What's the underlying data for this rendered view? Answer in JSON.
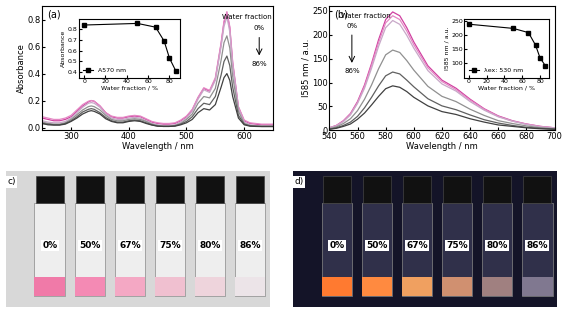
{
  "chart_data": [
    {
      "type": "line",
      "title": "(a)",
      "x_label": "Wavelength / nm",
      "y_label": "Absorbance",
      "x": [
        250,
        260,
        270,
        280,
        290,
        300,
        310,
        320,
        330,
        335,
        340,
        350,
        360,
        370,
        380,
        390,
        400,
        410,
        420,
        430,
        440,
        450,
        460,
        470,
        480,
        490,
        500,
        510,
        520,
        530,
        540,
        550,
        560,
        565,
        570,
        575,
        580,
        590,
        600,
        610,
        620,
        630,
        640,
        650
      ],
      "xlim": [
        250,
        650
      ],
      "xticks": [
        300,
        400,
        500,
        600
      ],
      "ylim": [
        -0.02,
        0.9
      ],
      "yticks": [
        0.0,
        0.2,
        0.4,
        0.6,
        0.8
      ],
      "series": [
        {
          "name": "0%",
          "color": "#d040a0",
          "values": [
            0.07,
            0.06,
            0.05,
            0.05,
            0.06,
            0.08,
            0.12,
            0.16,
            0.19,
            0.2,
            0.195,
            0.16,
            0.11,
            0.08,
            0.07,
            0.07,
            0.08,
            0.085,
            0.08,
            0.06,
            0.04,
            0.03,
            0.025,
            0.025,
            0.03,
            0.05,
            0.08,
            0.13,
            0.22,
            0.29,
            0.27,
            0.36,
            0.62,
            0.78,
            0.85,
            0.74,
            0.48,
            0.15,
            0.05,
            0.03,
            0.025,
            0.02,
            0.02,
            0.02
          ]
        },
        {
          "name": "50%",
          "color": "#e488c4",
          "values": [
            0.08,
            0.07,
            0.06,
            0.06,
            0.07,
            0.09,
            0.13,
            0.17,
            0.195,
            0.2,
            0.195,
            0.16,
            0.11,
            0.085,
            0.075,
            0.075,
            0.085,
            0.09,
            0.085,
            0.065,
            0.045,
            0.035,
            0.03,
            0.03,
            0.035,
            0.055,
            0.085,
            0.135,
            0.225,
            0.295,
            0.275,
            0.37,
            0.63,
            0.79,
            0.86,
            0.75,
            0.49,
            0.155,
            0.055,
            0.035,
            0.03,
            0.025,
            0.025,
            0.025
          ]
        },
        {
          "name": "67%",
          "color": "#c8a8c8",
          "values": [
            0.05,
            0.04,
            0.035,
            0.035,
            0.045,
            0.07,
            0.11,
            0.15,
            0.18,
            0.185,
            0.18,
            0.15,
            0.1,
            0.07,
            0.06,
            0.06,
            0.07,
            0.075,
            0.07,
            0.05,
            0.03,
            0.02,
            0.015,
            0.015,
            0.02,
            0.04,
            0.07,
            0.12,
            0.21,
            0.28,
            0.26,
            0.35,
            0.6,
            0.75,
            0.82,
            0.71,
            0.46,
            0.14,
            0.04,
            0.02,
            0.015,
            0.01,
            0.01,
            0.01
          ]
        },
        {
          "name": "75%",
          "color": "#909090",
          "values": [
            0.04,
            0.03,
            0.025,
            0.025,
            0.035,
            0.06,
            0.095,
            0.13,
            0.155,
            0.16,
            0.155,
            0.13,
            0.09,
            0.06,
            0.05,
            0.05,
            0.06,
            0.065,
            0.06,
            0.045,
            0.025,
            0.015,
            0.01,
            0.01,
            0.015,
            0.03,
            0.06,
            0.1,
            0.18,
            0.23,
            0.22,
            0.29,
            0.5,
            0.63,
            0.68,
            0.59,
            0.38,
            0.12,
            0.03,
            0.015,
            0.01,
            0.01,
            0.01,
            0.01
          ]
        },
        {
          "name": "80%",
          "color": "#606060",
          "values": [
            0.03,
            0.025,
            0.02,
            0.02,
            0.03,
            0.05,
            0.08,
            0.115,
            0.135,
            0.14,
            0.135,
            0.11,
            0.075,
            0.05,
            0.04,
            0.04,
            0.05,
            0.055,
            0.05,
            0.035,
            0.02,
            0.01,
            0.008,
            0.008,
            0.012,
            0.025,
            0.045,
            0.08,
            0.14,
            0.18,
            0.17,
            0.23,
            0.39,
            0.49,
            0.53,
            0.46,
            0.3,
            0.09,
            0.025,
            0.012,
            0.01,
            0.008,
            0.008,
            0.008
          ]
        },
        {
          "name": "86%",
          "color": "#404040",
          "values": [
            0.03,
            0.02,
            0.018,
            0.018,
            0.025,
            0.045,
            0.07,
            0.1,
            0.12,
            0.125,
            0.12,
            0.1,
            0.065,
            0.045,
            0.035,
            0.035,
            0.045,
            0.05,
            0.045,
            0.03,
            0.018,
            0.01,
            0.008,
            0.008,
            0.01,
            0.02,
            0.035,
            0.06,
            0.11,
            0.14,
            0.13,
            0.17,
            0.3,
            0.37,
            0.4,
            0.35,
            0.23,
            0.07,
            0.02,
            0.01,
            0.008,
            0.007,
            0.007,
            0.007
          ]
        }
      ],
      "annotations": [
        "Water fraction",
        "0%",
        "86%"
      ],
      "inset": {
        "type": "line",
        "x_label": "Water fraction / %",
        "y_label": "Absorbance",
        "x": [
          0,
          50,
          67,
          75,
          80,
          86
        ],
        "xlim": [
          -5,
          90
        ],
        "xticks": [
          0,
          20,
          40,
          60,
          80
        ],
        "ylim": [
          0.35,
          0.9
        ],
        "yticks": [
          0.4,
          0.5,
          0.6,
          0.7,
          0.8
        ],
        "legend": "lower left",
        "series": [
          {
            "name": "A570 nm",
            "color": "#000000",
            "marker": "square",
            "values": [
              0.84,
              0.855,
              0.82,
              0.69,
              0.53,
              0.41
            ]
          }
        ]
      }
    },
    {
      "type": "line",
      "title": "(b)",
      "x_label": "Wavelength / nm",
      "y_label": "I585 nm / a.u.",
      "x": [
        540,
        545,
        550,
        555,
        560,
        565,
        570,
        575,
        580,
        585,
        590,
        595,
        600,
        610,
        620,
        630,
        640,
        650,
        660,
        670,
        680,
        690,
        700
      ],
      "xlim": [
        540,
        700
      ],
      "xticks": [
        540,
        560,
        580,
        600,
        620,
        640,
        660,
        680,
        700
      ],
      "ylim": [
        0,
        260
      ],
      "yticks": [
        0,
        50,
        100,
        150,
        200,
        250
      ],
      "series": [
        {
          "name": "0%",
          "color": "#d040a0",
          "values": [
            5,
            10,
            20,
            35,
            60,
            95,
            140,
            190,
            232,
            248,
            240,
            215,
            185,
            135,
            105,
            88,
            65,
            45,
            30,
            20,
            13,
            8,
            5
          ]
        },
        {
          "name": "50%",
          "color": "#e488c4",
          "values": [
            5,
            10,
            19,
            34,
            58,
            92,
            136,
            184,
            225,
            240,
            232,
            208,
            179,
            131,
            102,
            85,
            63,
            44,
            29,
            19,
            13,
            8,
            5
          ]
        },
        {
          "name": "67%",
          "color": "#c8a8c8",
          "values": [
            5,
            9,
            18,
            32,
            56,
            88,
            130,
            176,
            215,
            230,
            222,
            199,
            172,
            125,
            97,
            82,
            60,
            42,
            28,
            19,
            12,
            7,
            5
          ]
        },
        {
          "name": "75%",
          "color": "#909090",
          "values": [
            3,
            7,
            14,
            24,
            41,
            65,
            95,
            129,
            158,
            168,
            163,
            146,
            126,
            92,
            71,
            60,
            44,
            31,
            20,
            14,
            9,
            5,
            3
          ]
        },
        {
          "name": "80%",
          "color": "#606060",
          "values": [
            2,
            5,
            10,
            17,
            29,
            47,
            69,
            93,
            114,
            122,
            118,
            105,
            91,
            66,
            51,
            43,
            32,
            22,
            15,
            10,
            6,
            4,
            2
          ]
        },
        {
          "name": "86%",
          "color": "#404040",
          "values": [
            2,
            4,
            8,
            13,
            23,
            36,
            53,
            71,
            87,
            93,
            90,
            81,
            69,
            51,
            39,
            33,
            24,
            17,
            11,
            8,
            5,
            3,
            2
          ]
        }
      ],
      "annotations": [
        "Water fraction",
        "0%",
        "86%"
      ],
      "inset": {
        "type": "line",
        "x_label": "Water fraction / %",
        "y_label": "I585 nm / a.u.",
        "x": [
          0,
          50,
          67,
          75,
          80,
          86
        ],
        "xlim": [
          -5,
          90
        ],
        "xticks": [
          0,
          20,
          40,
          60,
          80
        ],
        "ylim": [
          50,
          260
        ],
        "yticks": [
          100,
          150,
          200,
          250
        ],
        "legend": "lower left",
        "series": [
          {
            "name": "λex: 530 nm",
            "color": "#000000",
            "marker": "square",
            "values": [
              240,
              225,
              210,
              165,
              120,
              92
            ]
          }
        ]
      }
    }
  ],
  "photos": [
    {
      "label": "c)",
      "vials": [
        "0%",
        "50%",
        "67%",
        "75%",
        "80%",
        "86%"
      ],
      "colors": [
        "#f07aa8",
        "#f48ab4",
        "#f4a8c4",
        "#f0c0d0",
        "#eed4dc",
        "#ece4e8"
      ]
    },
    {
      "label": "d)",
      "vials": [
        "0%",
        "50%",
        "67%",
        "75%",
        "80%",
        "86%"
      ],
      "colors": [
        "#ff7a30",
        "#ff8a40",
        "#f0a060",
        "#d09070",
        "#a08080",
        "#807890"
      ]
    }
  ]
}
